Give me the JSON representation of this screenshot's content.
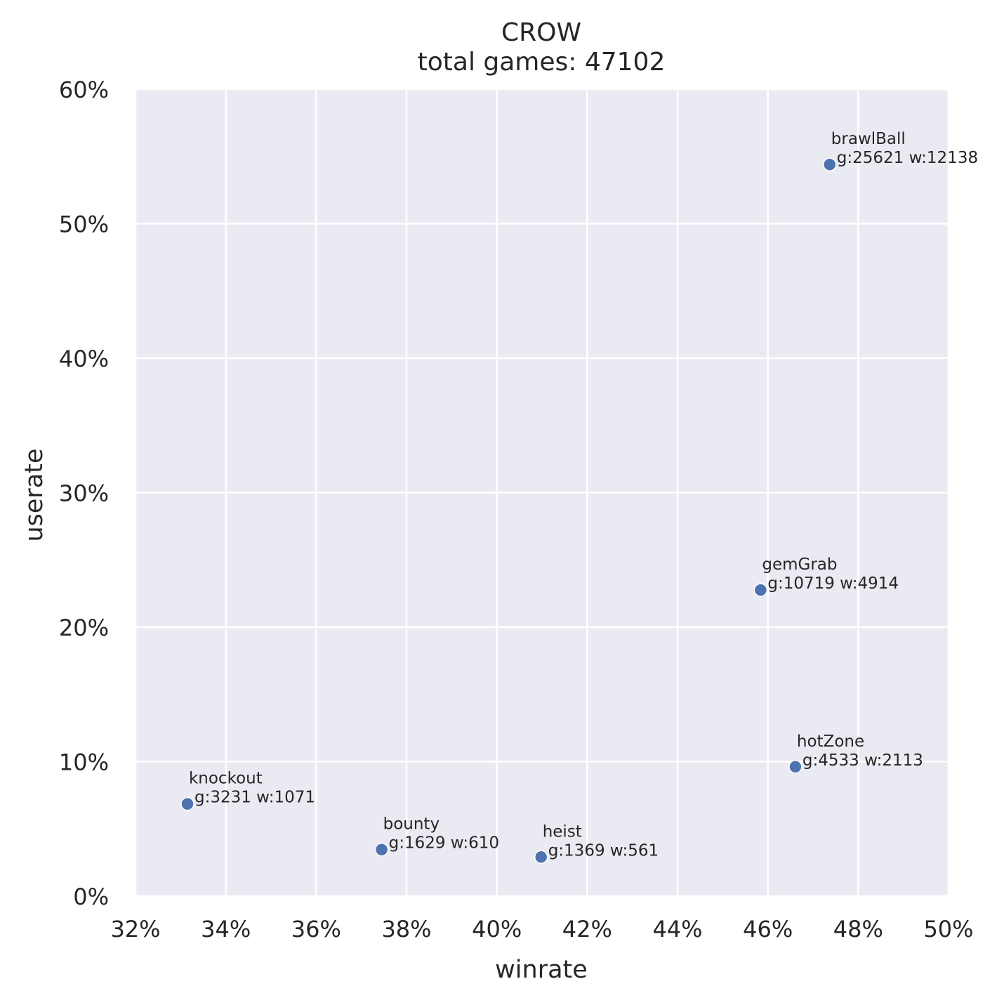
{
  "chart_data": {
    "type": "scatter",
    "title": "CROW",
    "subtitle": "total games: 47102",
    "xlabel": "winrate",
    "ylabel": "userate",
    "xlim": [
      0.32,
      0.5
    ],
    "ylim": [
      0.0,
      0.6
    ],
    "x_ticks": [
      0.32,
      0.34,
      0.36,
      0.38,
      0.4,
      0.42,
      0.44,
      0.46,
      0.48,
      0.5
    ],
    "x_tick_labels": [
      "32%",
      "34%",
      "36%",
      "38%",
      "40%",
      "42%",
      "44%",
      "46%",
      "48%",
      "50%"
    ],
    "y_ticks": [
      0.0,
      0.1,
      0.2,
      0.3,
      0.4,
      0.5,
      0.6
    ],
    "y_tick_labels": [
      "0%",
      "10%",
      "20%",
      "30%",
      "40%",
      "50%",
      "60%"
    ],
    "grid": true,
    "background_color": "#eaeaf2",
    "marker_color": "#4c72b0",
    "points": [
      {
        "name": "brawlBall",
        "label": "g:25621 w:12138",
        "x": 0.4737,
        "y": 0.544
      },
      {
        "name": "gemGrab",
        "label": "g:10719 w:4914",
        "x": 0.4584,
        "y": 0.2276
      },
      {
        "name": "hotZone",
        "label": "g:4533 w:2113",
        "x": 0.4661,
        "y": 0.0962
      },
      {
        "name": "knockout",
        "label": "g:3231 w:1071",
        "x": 0.3315,
        "y": 0.0686
      },
      {
        "name": "bounty",
        "label": "g:1629 w:610",
        "x": 0.3745,
        "y": 0.0346
      },
      {
        "name": "heist",
        "label": "g:1369 w:561",
        "x": 0.4098,
        "y": 0.0291
      }
    ]
  }
}
